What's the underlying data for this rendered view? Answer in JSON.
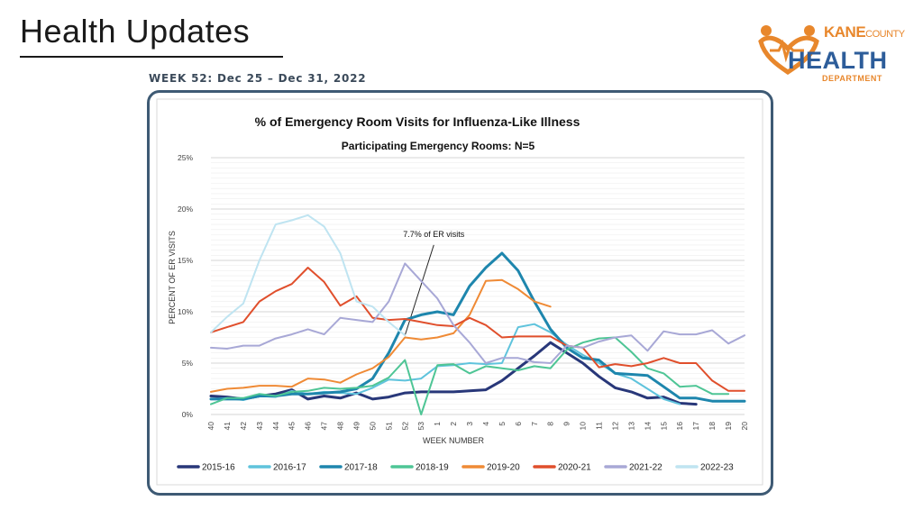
{
  "slide": {
    "title": "Health Updates",
    "week_label": "WEEK 52: Dec 25 – Dec 31, 2022"
  },
  "logo": {
    "kane": "KANE",
    "county": "COUNTY",
    "health": "HEALTH",
    "department": "DEPARTMENT",
    "colors": {
      "orange": "#e8872c",
      "blue": "#2d5d9a"
    }
  },
  "chart_data": {
    "type": "line",
    "title": "% of Emergency Room Visits for Influenza-Like Illness",
    "subtitle": "Participating Emergency Rooms: N=5",
    "xlabel": "WEEK NUMBER",
    "ylabel": "PERCENT OF ER VISITS",
    "ylim": [
      0,
      25
    ],
    "yticks": [
      "0%",
      "5%",
      "10%",
      "15%",
      "20%",
      "25%"
    ],
    "grid": true,
    "legend_position": "bottom",
    "categories": [
      "40",
      "41",
      "42",
      "43",
      "44",
      "45",
      "46",
      "47",
      "48",
      "49",
      "50",
      "51",
      "52",
      "53",
      "1",
      "2",
      "3",
      "4",
      "5",
      "6",
      "7",
      "8",
      "9",
      "10",
      "11",
      "12",
      "13",
      "14",
      "15",
      "16",
      "17",
      "18",
      "19",
      "20"
    ],
    "annotation": {
      "text": "7.7% of ER visits",
      "x": "52",
      "y": 7.7
    },
    "series": [
      {
        "name": "2015-16",
        "color": "#283779",
        "values": [
          1.8,
          1.7,
          1.5,
          1.8,
          2.0,
          2.4,
          1.5,
          1.8,
          1.6,
          2.1,
          1.5,
          1.7,
          2.1,
          2.2,
          2.2,
          2.2,
          2.3,
          2.4,
          3.3,
          4.5,
          5.7,
          7.0,
          6.0,
          5.0,
          3.7,
          2.6,
          2.2,
          1.6,
          1.7,
          1.1,
          1.0,
          null,
          null,
          null
        ]
      },
      {
        "name": "2016-17",
        "color": "#5fc3dc",
        "values": [
          1.5,
          1.6,
          1.4,
          1.8,
          1.7,
          2.3,
          2.0,
          2.2,
          2.1,
          2.0,
          2.6,
          3.4,
          3.3,
          3.5,
          4.7,
          4.8,
          5.0,
          4.9,
          5.0,
          8.5,
          8.8,
          8.0,
          6.8,
          5.8,
          5.0,
          4.0,
          3.5,
          2.5,
          1.5,
          1.0,
          null,
          null,
          null,
          null
        ]
      },
      {
        "name": "2017-18",
        "color": "#1e86ad",
        "values": [
          1.5,
          1.5,
          1.5,
          1.8,
          1.8,
          2.0,
          2.0,
          2.1,
          2.2,
          2.5,
          3.5,
          6.0,
          9.2,
          9.7,
          10.0,
          9.7,
          12.5,
          14.3,
          15.7,
          14.0,
          11.0,
          8.3,
          6.5,
          5.5,
          5.3,
          4.0,
          3.9,
          3.8,
          2.7,
          1.6,
          1.6,
          1.3,
          1.3,
          1.3
        ]
      },
      {
        "name": "2018-19",
        "color": "#4ec595",
        "values": [
          1.0,
          1.6,
          1.6,
          2.0,
          1.8,
          2.2,
          2.3,
          2.6,
          2.5,
          2.6,
          2.8,
          3.6,
          5.3,
          0.0,
          4.8,
          4.9,
          4.0,
          4.7,
          4.5,
          4.3,
          4.7,
          4.5,
          6.3,
          7.0,
          7.4,
          7.5,
          6.1,
          4.5,
          4.0,
          2.7,
          2.8,
          2.0,
          2.0,
          null
        ]
      },
      {
        "name": "2019-20",
        "color": "#ef8a35",
        "values": [
          2.2,
          2.5,
          2.6,
          2.8,
          2.8,
          2.7,
          3.5,
          3.4,
          3.1,
          3.9,
          4.5,
          5.6,
          7.5,
          7.3,
          7.5,
          7.9,
          9.7,
          13.0,
          13.1,
          12.2,
          11.0,
          10.5,
          null,
          null,
          null,
          null,
          null,
          null,
          null,
          null,
          null,
          null,
          null,
          null
        ]
      },
      {
        "name": "2020-21",
        "color": "#e04f2c",
        "values": [
          8.0,
          8.5,
          9.0,
          11.0,
          12.0,
          12.7,
          14.3,
          12.9,
          10.6,
          11.5,
          9.4,
          9.2,
          9.3,
          9.0,
          8.7,
          8.6,
          9.4,
          8.7,
          7.5,
          7.6,
          7.6,
          7.6,
          6.7,
          6.5,
          4.6,
          4.9,
          4.7,
          5.0,
          5.5,
          5.0,
          5.0,
          3.3,
          2.3,
          2.3
        ]
      },
      {
        "name": "2021-22",
        "color": "#a8a8d6",
        "values": [
          6.5,
          6.4,
          6.7,
          6.7,
          7.4,
          7.8,
          8.3,
          7.8,
          9.4,
          9.2,
          9.0,
          11.0,
          14.7,
          13.0,
          11.3,
          8.7,
          7.0,
          5.0,
          5.5,
          5.5,
          5.1,
          5.0,
          6.7,
          6.5,
          7.1,
          7.5,
          7.7,
          6.2,
          8.1,
          7.8,
          7.8,
          8.2,
          6.9,
          7.7
        ]
      },
      {
        "name": "2022-23",
        "color": "#bfe4f1",
        "values": [
          8.0,
          9.5,
          10.8,
          15.0,
          18.5,
          18.9,
          19.4,
          18.3,
          15.7,
          11.0,
          10.5,
          9.0,
          7.7,
          null,
          null,
          null,
          null,
          null,
          null,
          null,
          null,
          null,
          null,
          null,
          null,
          null,
          null,
          null,
          null,
          null,
          null,
          null,
          null,
          null
        ]
      }
    ]
  }
}
